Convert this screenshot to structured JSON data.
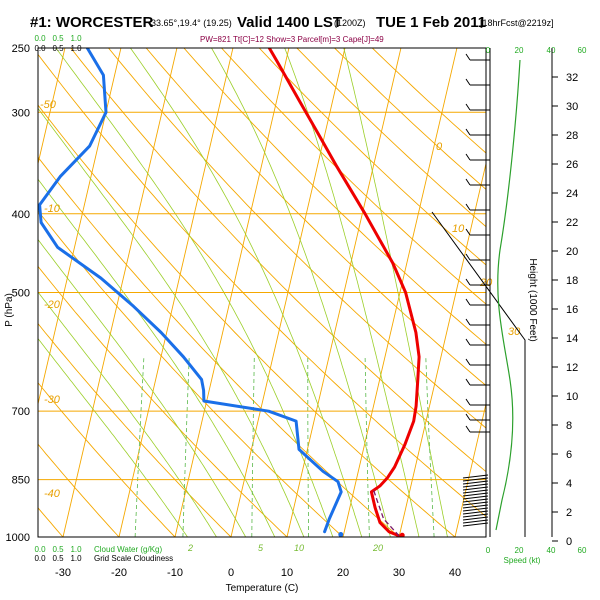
{
  "header": {
    "station": "#1: WORCESTER",
    "coords": "-33.65°,19.4° (19.25)",
    "valid": "Valid 1400 LST",
    "utc": "(1200Z)",
    "date": "TUE 1 Feb 2011",
    "forecast": "[18hrFcst@2219z]",
    "indices": "PW=821 Tt[C]=12 Show=3 Parcel[m]=3 Cape[J]=49"
  },
  "chart_data": {
    "type": "skew-t",
    "xlabel": "Temperature (C)",
    "ylabel": "P (hPa)",
    "y2label": "Height (1000 Feet)",
    "x_ticks": [
      -30,
      -20,
      -10,
      0,
      10,
      20,
      30,
      40
    ],
    "p_ticks": [
      250,
      300,
      400,
      500,
      700,
      850,
      1000
    ],
    "p_range": [
      250,
      1000
    ],
    "height_ticks": [
      0,
      2,
      4,
      6,
      8,
      10,
      12,
      14,
      16,
      18,
      20,
      22,
      24,
      26,
      28,
      30,
      32
    ],
    "speed_ticks": [
      0,
      20,
      40,
      60
    ],
    "speed_label": "Speed (kt)",
    "cloud_water_label": "Cloud Water (g/Kg)",
    "cloud_water_ticks": [
      "0.0",
      "0.5",
      "1.0"
    ],
    "cloudiness_label": "Grid Scale Cloudiness",
    "cloudiness_ticks": [
      "0.0",
      "0.5",
      "1.0"
    ],
    "mixing_ratio_labels": [
      "2",
      "5",
      "10",
      "20"
    ],
    "theta_labels": [
      "0",
      "10",
      "20",
      "30",
      "-10",
      "-20",
      "-30",
      "-40",
      "-50"
    ],
    "temperature": {
      "name": "Temperature",
      "color": "#ee0000",
      "p": [
        997,
        985,
        960,
        920,
        880,
        865,
        845,
        820,
        770,
        720,
        690,
        640,
        600,
        560,
        500,
        460,
        400,
        350,
        320,
        290,
        260,
        250
      ],
      "t": [
        30,
        28,
        26,
        24.5,
        23.2,
        24.5,
        25.5,
        26.3,
        27.2,
        27.8,
        27.6,
        26.8,
        26.1,
        24.5,
        21,
        17.5,
        10.5,
        3.5,
        -1,
        -6,
        -11.5,
        -13.5
      ]
    },
    "dewpoint": {
      "name": "Dewpoint",
      "color": "#1a6fe8",
      "p": [
        985,
        950,
        880,
        855,
        830,
        780,
        720,
        700,
        680,
        660,
        640,
        600,
        560,
        520,
        480,
        440,
        410,
        390,
        360,
        330,
        300,
        270,
        250
      ],
      "t": [
        16.5,
        16.8,
        17.8,
        16.8,
        13.7,
        8.5,
        6.8,
        1.5,
        -10.5,
        -11,
        -11.8,
        -16,
        -21,
        -27,
        -34,
        -43,
        -47,
        -48,
        -45.5,
        -41.5,
        -40,
        -42,
        -46
      ]
    },
    "parcel": {
      "name": "Parcel",
      "color": "#7a1a6a",
      "p": [
        997,
        950,
        900,
        870
      ],
      "t": [
        30,
        26.5,
        24.5,
        23.3
      ]
    },
    "surface_markers": [
      {
        "p": 995,
        "t": 30.5,
        "color": "#ee0000"
      },
      {
        "p": 993,
        "t": 19.5,
        "color": "#1a6fe8"
      }
    ]
  }
}
